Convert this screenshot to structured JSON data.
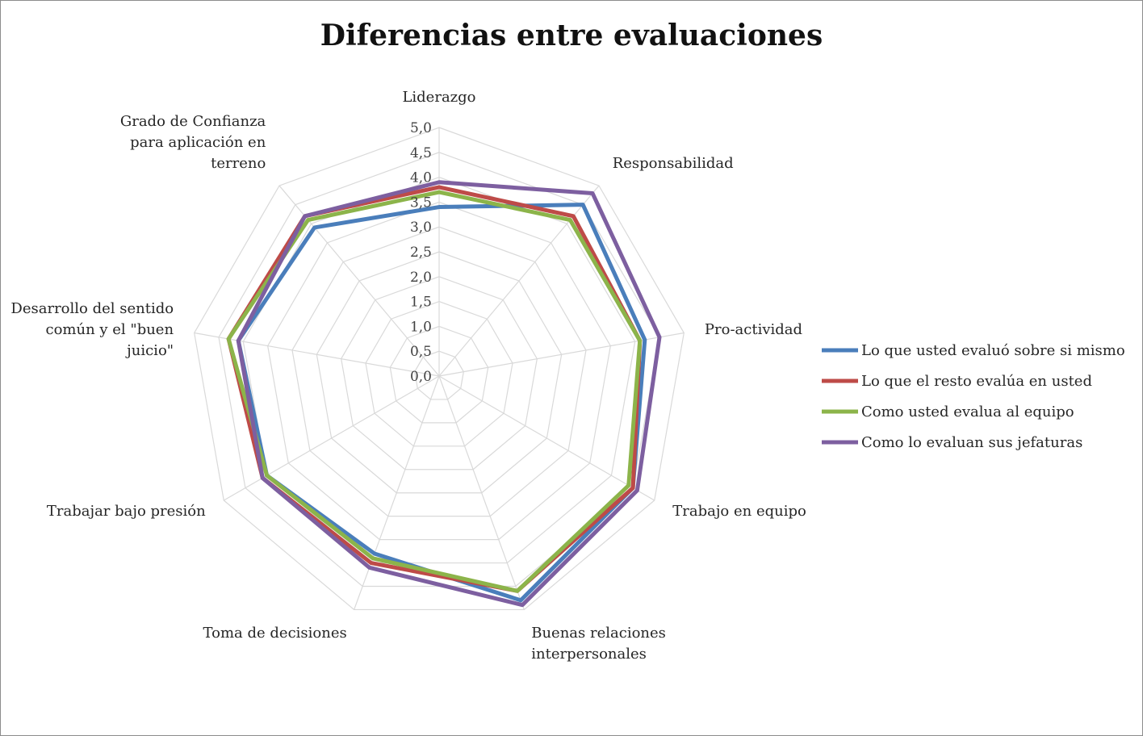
{
  "chart_data": {
    "type": "radar",
    "title": "Diferencias entre evaluaciones",
    "rlim": [
      0,
      5
    ],
    "tick_labels": [
      "0,0",
      "0,5",
      "1,0",
      "1,5",
      "2,0",
      "2,5",
      "3,0",
      "3,5",
      "4,0",
      "4,5",
      "5,0"
    ],
    "grid": true,
    "legend_position": "right",
    "categories": [
      "Liderazgo",
      "Responsabilidad",
      "Pro-actividad",
      "Trabajo en equipo",
      "Buenas relaciones interpersonales",
      "Toma de decisiones",
      "Trabajar bajo presión",
      "Desarrollo del sentido común y el \"buen juicio\"",
      "Grado de Confianza para aplicación en terreno"
    ],
    "category_lines": [
      [
        "Liderazgo"
      ],
      [
        "Responsabilidad"
      ],
      [
        "Pro-actividad"
      ],
      [
        "Trabajo en equipo"
      ],
      [
        "Buenas relaciones",
        "interpersonales"
      ],
      [
        "Toma de decisiones"
      ],
      [
        "Trabajar bajo presión"
      ],
      [
        "Desarrollo del sentido",
        "común y el \"buen",
        "juicio\""
      ],
      [
        "Grado de Confianza",
        "para aplicación en",
        "terreno"
      ]
    ],
    "series": [
      {
        "name": "Lo que usted evaluó sobre si mismo",
        "color": "#4a7ebb",
        "values": [
          3.4,
          4.5,
          4.2,
          4.5,
          4.8,
          3.8,
          4.0,
          4.1,
          3.9
        ]
      },
      {
        "name": "Lo que el resto evalúa en usted",
        "color": "#be4b48",
        "values": [
          3.8,
          4.2,
          4.1,
          4.5,
          4.6,
          4.0,
          4.1,
          4.3,
          4.2
        ]
      },
      {
        "name": "Como usted evalua al equipo",
        "color": "#8cb44a",
        "values": [
          3.7,
          4.1,
          4.1,
          4.4,
          4.6,
          3.9,
          4.0,
          4.3,
          4.1
        ]
      },
      {
        "name": "Como lo evaluan sus jefaturas",
        "color": "#7d5fa0",
        "values": [
          3.9,
          4.8,
          4.5,
          4.6,
          4.9,
          4.1,
          4.1,
          4.1,
          4.2
        ]
      }
    ]
  }
}
